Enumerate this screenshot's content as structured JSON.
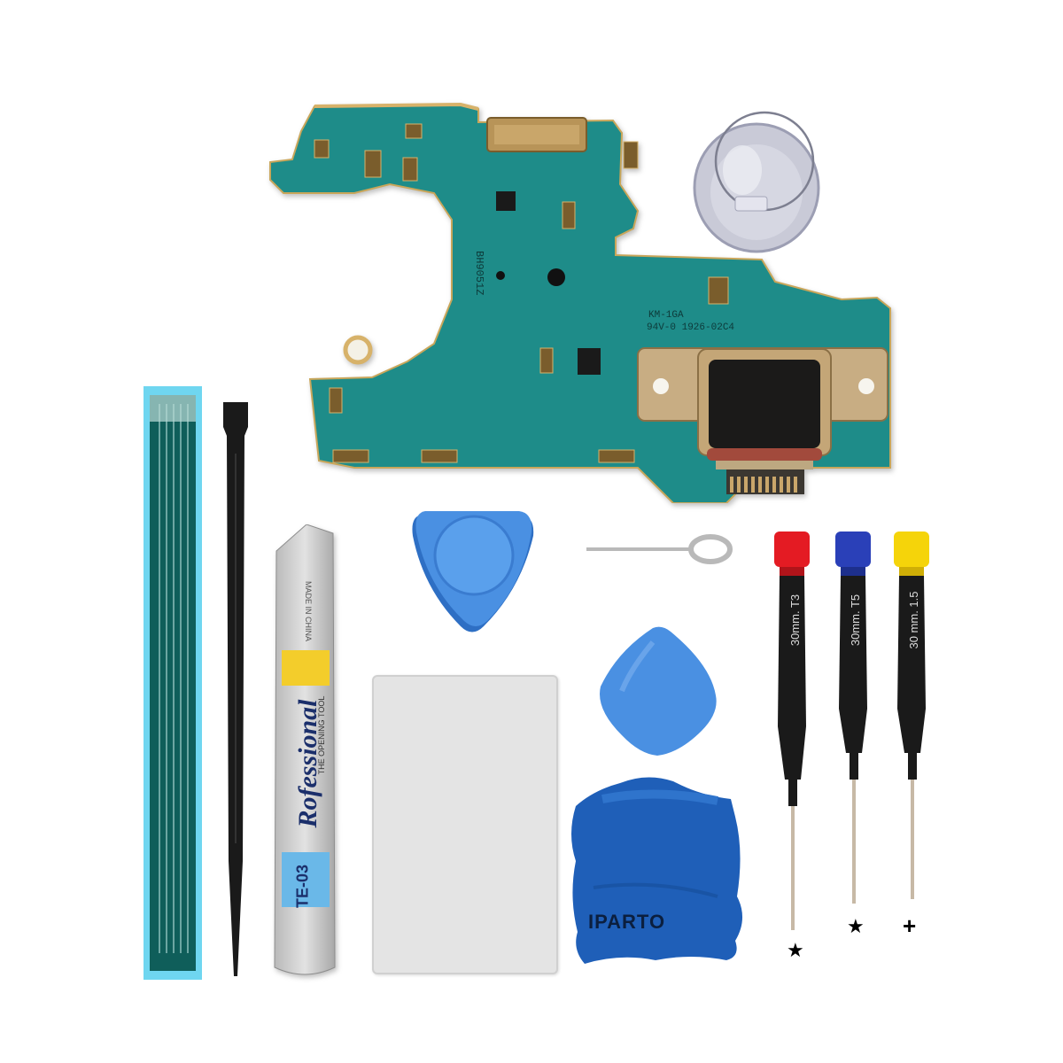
{
  "board": {
    "silk_marking_1": "KM-1GA",
    "silk_marking_2": "94V-0 1926-02C4",
    "silk_marking_3": "BH9051Z",
    "color": "#1f8f8c"
  },
  "spudger_tool": {
    "brand_text": "Rofessional",
    "sub_text": "THE OPENING TOOL",
    "model_label": "TE-03",
    "sticker_text": "MADE IN CHINA"
  },
  "cloth": {
    "brand_label": "IPARTO",
    "color": "#1d5fb6"
  },
  "screwdrivers": [
    {
      "handle_color": "#e41b23",
      "shaft_label": "30mm.",
      "tip_label": "T3",
      "tip_symbol": "★"
    },
    {
      "handle_color": "#2a40b8",
      "shaft_label": "30mm.",
      "tip_label": "T5",
      "tip_symbol": "★"
    },
    {
      "handle_color": "#f5d40a",
      "shaft_label": "30 mm.",
      "tip_label": "1.5",
      "tip_symbol": "+"
    }
  ],
  "pick_color": "#4a90e2"
}
